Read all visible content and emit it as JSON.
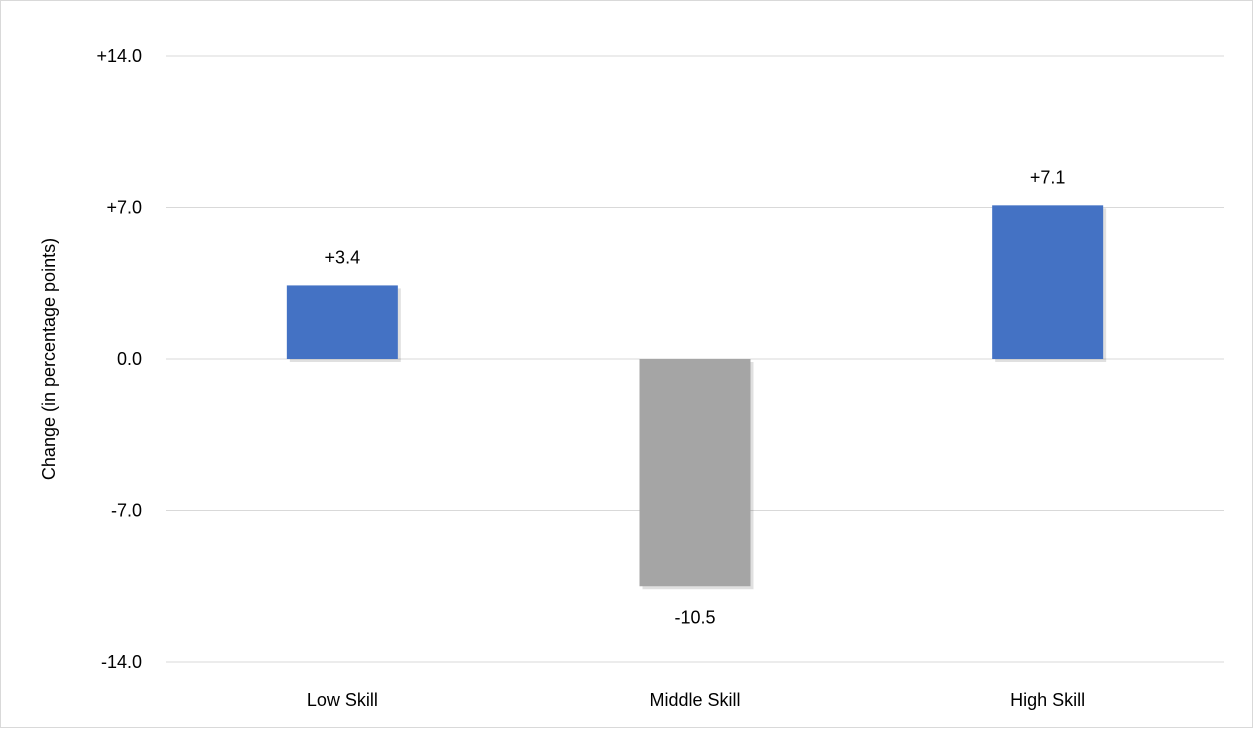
{
  "chart_data": {
    "type": "bar",
    "title": "",
    "xlabel": "",
    "ylabel": "Change (in percentage points)",
    "categories": [
      "Low Skill",
      "Middle Skill",
      "High Skill"
    ],
    "values": [
      3.4,
      -10.5,
      7.1
    ],
    "data_labels": [
      "+3.4",
      "-10.5",
      "+7.1"
    ],
    "bar_colors": [
      "#4472C4",
      "#A5A5A5",
      "#4472C4"
    ],
    "ylim": [
      -14,
      14
    ],
    "yticks": [
      14,
      7,
      0,
      -7,
      -14
    ],
    "ytick_labels": [
      "+14.0",
      "+7.0",
      "0.0",
      "-7.0",
      "-14.0"
    ],
    "grid": true,
    "legend": "none"
  }
}
